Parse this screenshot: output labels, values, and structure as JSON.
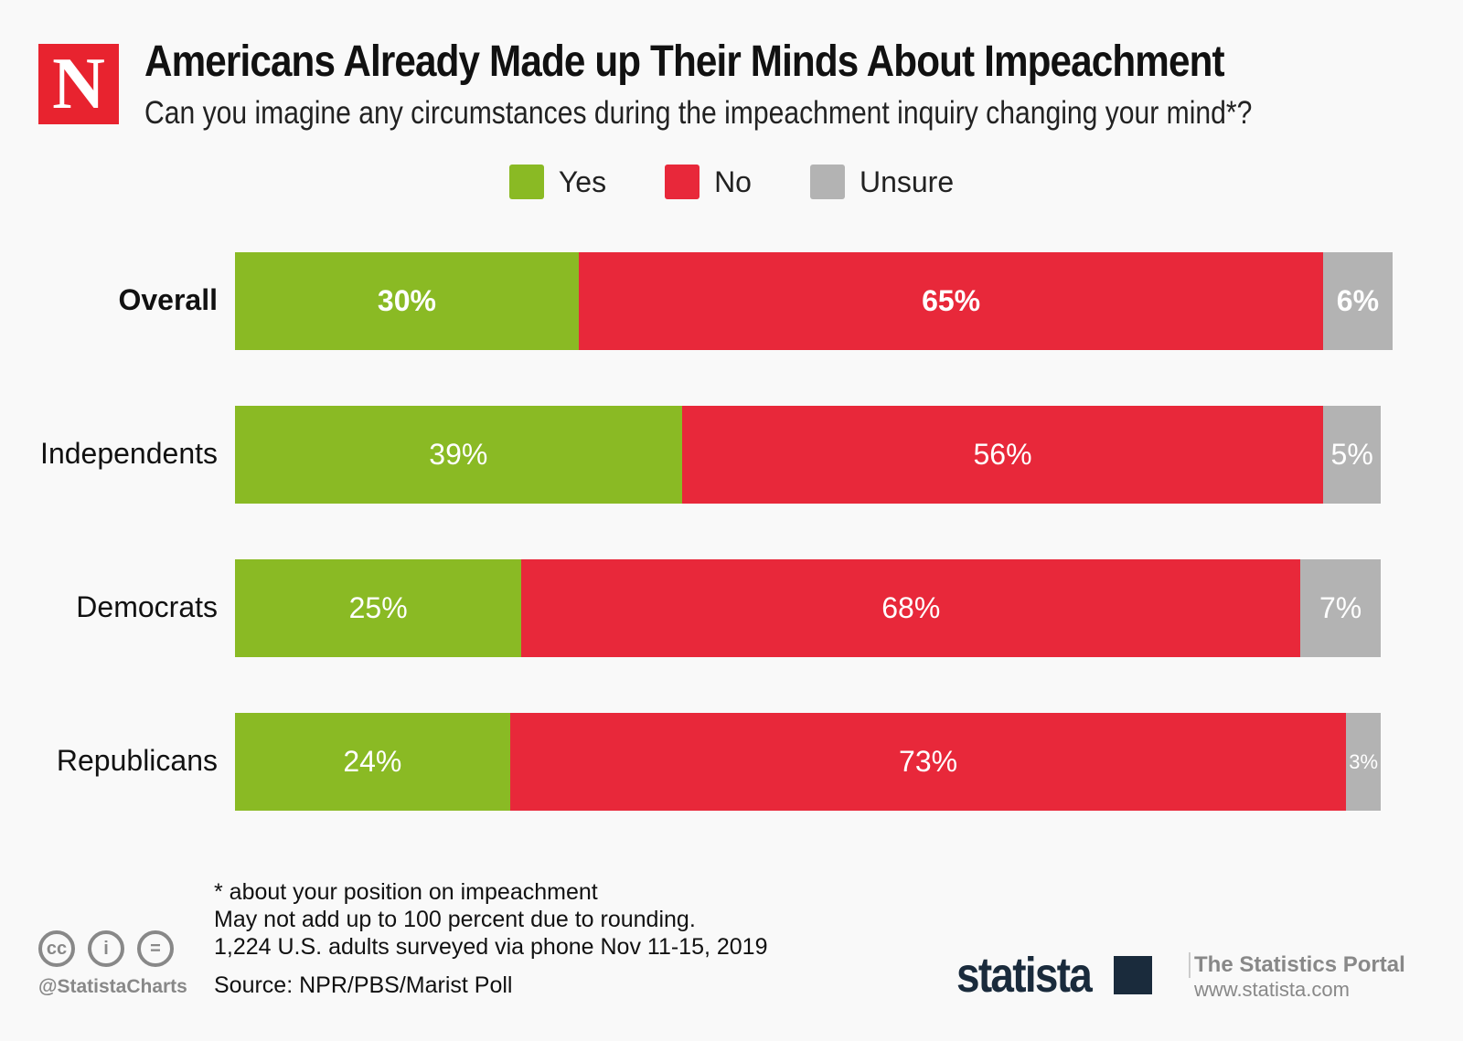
{
  "header": {
    "logo_letter": "N",
    "title": "Americans Already Made up Their Minds About Impeachment",
    "subtitle": "Can you imagine any circumstances during the impeachment inquiry changing your mind*?"
  },
  "chart_data": {
    "type": "bar",
    "orientation": "horizontal",
    "stacked": true,
    "title": "Americans Already Made up Their Minds About Impeachment",
    "subtitle": "Can you imagine any circumstances during the impeachment inquiry changing your mind*?",
    "categories": [
      "Overall",
      "Independents",
      "Democrats",
      "Republicans"
    ],
    "series": [
      {
        "name": "Yes",
        "color": "#8aba24",
        "values": [
          30,
          39,
          25,
          24
        ]
      },
      {
        "name": "No",
        "color": "#e8283a",
        "values": [
          65,
          56,
          68,
          73
        ]
      },
      {
        "name": "Unsure",
        "color": "#b3b3b3",
        "values": [
          6,
          5,
          7,
          3
        ]
      }
    ],
    "data_labels": [
      [
        "30%",
        "65%",
        "6%"
      ],
      [
        "39%",
        "56%",
        "5%"
      ],
      [
        "25%",
        "68%",
        "7%"
      ],
      [
        "24%",
        "73%",
        "3%"
      ]
    ],
    "legend": "top-center",
    "grid": false,
    "unit": "%"
  },
  "footer": {
    "notes": [
      "* about your position on impeachment",
      "May not add up to 100 percent due to rounding.",
      "1,224 U.S. adults surveyed via phone Nov 11-15, 2019"
    ],
    "source": "Source: NPR/PBS/Marist Poll",
    "handle": "@StatistaCharts",
    "cc_icons": [
      "cc",
      "i",
      "="
    ],
    "brand": "statista",
    "portal": "The Statistics Portal",
    "url": "www.statista.com"
  }
}
